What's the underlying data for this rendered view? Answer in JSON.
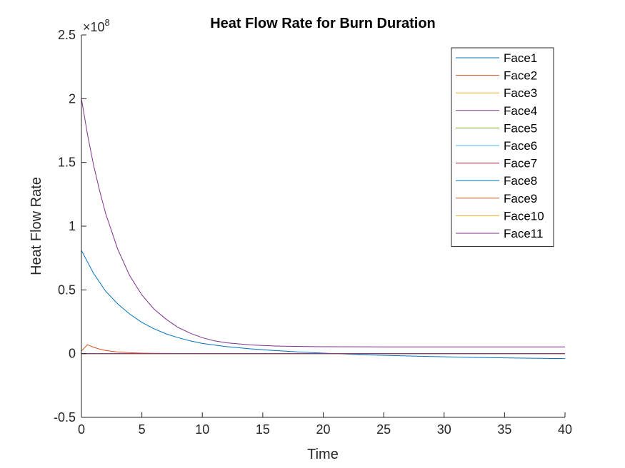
{
  "chart_data": {
    "type": "line",
    "title": "Heat Flow Rate for Burn Duration",
    "xlabel": "Time",
    "ylabel": "Heat Flow Rate",
    "xlim": [
      0,
      40
    ],
    "ylim": [
      -0.5,
      2.5
    ],
    "y_multiplier": "×10",
    "y_exponent": "8",
    "x_ticks": [
      "0",
      "5",
      "10",
      "15",
      "20",
      "25",
      "30",
      "35",
      "40"
    ],
    "x_tick_values": [
      0,
      5,
      10,
      15,
      20,
      25,
      30,
      35,
      40
    ],
    "y_ticks": [
      "-0.5",
      "0",
      "0.5",
      "1",
      "1.5",
      "2",
      "2.5"
    ],
    "y_tick_values": [
      -0.5,
      0,
      0.5,
      1,
      1.5,
      2,
      2.5
    ],
    "grid": false,
    "legend_position": "top-right",
    "series": [
      {
        "name": "Face1",
        "color": "#0072BD",
        "x": [
          0,
          1,
          2,
          3,
          4,
          5,
          6,
          7,
          8,
          9,
          10,
          12,
          14,
          16,
          18,
          20,
          22,
          24,
          26,
          28,
          30,
          32,
          34,
          36,
          38,
          40
        ],
        "y": [
          0.81,
          0.63,
          0.49,
          0.39,
          0.31,
          0.245,
          0.195,
          0.155,
          0.125,
          0.1,
          0.08,
          0.055,
          0.037,
          0.024,
          0.013,
          0.004,
          -0.004,
          -0.011,
          -0.016,
          -0.021,
          -0.025,
          -0.029,
          -0.032,
          -0.035,
          -0.037,
          -0.039
        ]
      },
      {
        "name": "Face2",
        "color": "#D95319",
        "x": [
          0,
          0.5,
          1,
          1.5,
          2,
          3,
          4,
          5,
          6,
          8,
          10,
          15,
          20,
          25,
          30,
          35,
          40
        ],
        "y": [
          0.02,
          0.07,
          0.05,
          0.035,
          0.025,
          0.013,
          0.007,
          0.004,
          0.002,
          0.001,
          0.0,
          0.0,
          0.0,
          0.0,
          0.0,
          0.0,
          0.0
        ]
      },
      {
        "name": "Face3",
        "color": "#EDB120",
        "x": [
          0,
          40
        ],
        "y": [
          0,
          0
        ]
      },
      {
        "name": "Face4",
        "color": "#7E2F8E",
        "x": [
          0,
          0.5,
          1,
          1.5,
          2,
          3,
          4,
          5,
          6,
          7,
          8,
          9,
          10,
          11,
          12,
          14,
          16,
          18,
          20,
          25,
          30,
          35,
          40
        ],
        "y": [
          2.0,
          1.72,
          1.48,
          1.28,
          1.1,
          0.82,
          0.61,
          0.46,
          0.35,
          0.27,
          0.205,
          0.16,
          0.125,
          0.1,
          0.085,
          0.068,
          0.06,
          0.056,
          0.054,
          0.053,
          0.053,
          0.053,
          0.053
        ]
      },
      {
        "name": "Face5",
        "color": "#77AC30",
        "x": [
          0,
          40
        ],
        "y": [
          0,
          0
        ]
      },
      {
        "name": "Face6",
        "color": "#4DBEEE",
        "x": [
          0,
          40
        ],
        "y": [
          0,
          0
        ]
      },
      {
        "name": "Face7",
        "color": "#A2142F",
        "x": [
          0,
          40
        ],
        "y": [
          0,
          0
        ]
      },
      {
        "name": "Face8",
        "color": "#0072BD",
        "x": [
          0,
          40
        ],
        "y": [
          0,
          0
        ]
      },
      {
        "name": "Face9",
        "color": "#D95319",
        "x": [
          0,
          40
        ],
        "y": [
          0,
          0
        ]
      },
      {
        "name": "Face10",
        "color": "#EDB120",
        "x": [
          0,
          40
        ],
        "y": [
          0,
          0
        ]
      },
      {
        "name": "Face11",
        "color": "#7E2F8E",
        "x": [
          0,
          40
        ],
        "y": [
          0,
          0
        ]
      }
    ]
  }
}
